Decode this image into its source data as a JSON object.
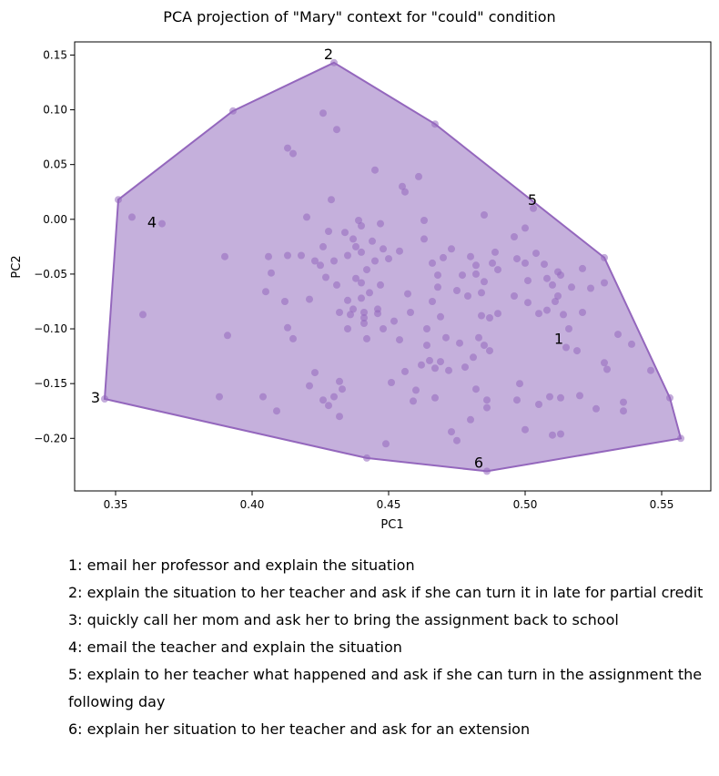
{
  "chart_data": {
    "type": "scatter",
    "title": "PCA projection of \"Mary\" context for \"could\" condition",
    "xlabel": "PC1",
    "ylabel": "PC2",
    "xlim": [
      0.335,
      0.568
    ],
    "ylim": [
      -0.248,
      0.162
    ],
    "xticks": [
      0.35,
      0.4,
      0.45,
      0.5,
      0.55
    ],
    "xtick_labels": [
      "0.35",
      "0.40",
      "0.45",
      "0.50",
      "0.55"
    ],
    "yticks": [
      0.15,
      0.1,
      0.05,
      0.0,
      -0.05,
      -0.1,
      -0.15,
      -0.2
    ],
    "ytick_labels": [
      "0.15",
      "0.10",
      "0.05",
      "0.00",
      "−0.05",
      "−0.10",
      "−0.15",
      "−0.20"
    ],
    "grid": false,
    "colors": {
      "point": "#9467bd",
      "hull_fill": "#c5b0dc",
      "hull_edge": "#9467bd"
    },
    "hull": [
      [
        0.43,
        0.143
      ],
      [
        0.467,
        0.087
      ],
      [
        0.529,
        -0.035
      ],
      [
        0.553,
        -0.163
      ],
      [
        0.557,
        -0.2
      ],
      [
        0.486,
        -0.23
      ],
      [
        0.442,
        -0.218
      ],
      [
        0.346,
        -0.164
      ],
      [
        0.351,
        0.018
      ],
      [
        0.393,
        0.099
      ]
    ],
    "labeled_points": [
      {
        "label": "1",
        "x": 0.515,
        "y": -0.117
      },
      {
        "label": "2",
        "x": 0.43,
        "y": 0.143
      },
      {
        "label": "3",
        "x": 0.346,
        "y": -0.164
      },
      {
        "label": "4",
        "x": 0.367,
        "y": -0.004
      },
      {
        "label": "5",
        "x": 0.503,
        "y": 0.01
      },
      {
        "label": "6",
        "x": 0.486,
        "y": -0.23
      }
    ],
    "points": [
      [
        0.43,
        0.143
      ],
      [
        0.393,
        0.099
      ],
      [
        0.467,
        0.087
      ],
      [
        0.351,
        0.018
      ],
      [
        0.346,
        -0.164
      ],
      [
        0.557,
        -0.2
      ],
      [
        0.553,
        -0.163
      ],
      [
        0.529,
        -0.035
      ],
      [
        0.486,
        -0.23
      ],
      [
        0.442,
        -0.218
      ],
      [
        0.356,
        0.002
      ],
      [
        0.367,
        -0.004
      ],
      [
        0.36,
        -0.087
      ],
      [
        0.39,
        -0.034
      ],
      [
        0.391,
        -0.106
      ],
      [
        0.388,
        -0.162
      ],
      [
        0.404,
        -0.162
      ],
      [
        0.409,
        -0.175
      ],
      [
        0.405,
        -0.066
      ],
      [
        0.406,
        -0.034
      ],
      [
        0.407,
        -0.049
      ],
      [
        0.412,
        -0.075
      ],
      [
        0.413,
        -0.099
      ],
      [
        0.415,
        -0.109
      ],
      [
        0.413,
        -0.033
      ],
      [
        0.418,
        -0.033
      ],
      [
        0.413,
        0.065
      ],
      [
        0.415,
        0.06
      ],
      [
        0.42,
        0.002
      ],
      [
        0.423,
        -0.038
      ],
      [
        0.421,
        -0.073
      ],
      [
        0.421,
        -0.152
      ],
      [
        0.423,
        -0.14
      ],
      [
        0.426,
        -0.165
      ],
      [
        0.428,
        -0.17
      ],
      [
        0.425,
        -0.042
      ],
      [
        0.426,
        -0.025
      ],
      [
        0.427,
        -0.053
      ],
      [
        0.428,
        -0.011
      ],
      [
        0.429,
        0.018
      ],
      [
        0.426,
        0.097
      ],
      [
        0.431,
        0.082
      ],
      [
        0.43,
        -0.038
      ],
      [
        0.431,
        -0.06
      ],
      [
        0.432,
        -0.085
      ],
      [
        0.433,
        -0.155
      ],
      [
        0.432,
        -0.148
      ],
      [
        0.43,
        -0.162
      ],
      [
        0.432,
        -0.18
      ],
      [
        0.434,
        -0.012
      ],
      [
        0.435,
        -0.033
      ],
      [
        0.435,
        -0.074
      ],
      [
        0.435,
        -0.1
      ],
      [
        0.436,
        -0.087
      ],
      [
        0.437,
        -0.082
      ],
      [
        0.437,
        -0.018
      ],
      [
        0.438,
        -0.025
      ],
      [
        0.438,
        -0.054
      ],
      [
        0.439,
        -0.001
      ],
      [
        0.44,
        -0.006
      ],
      [
        0.44,
        -0.03
      ],
      [
        0.44,
        -0.058
      ],
      [
        0.44,
        -0.072
      ],
      [
        0.441,
        -0.085
      ],
      [
        0.441,
        -0.09
      ],
      [
        0.441,
        -0.095
      ],
      [
        0.442,
        -0.109
      ],
      [
        0.442,
        -0.046
      ],
      [
        0.443,
        -0.067
      ],
      [
        0.444,
        -0.02
      ],
      [
        0.445,
        -0.038
      ],
      [
        0.445,
        0.045
      ],
      [
        0.446,
        -0.082
      ],
      [
        0.446,
        -0.086
      ],
      [
        0.447,
        -0.004
      ],
      [
        0.447,
        -0.06
      ],
      [
        0.448,
        -0.1
      ],
      [
        0.448,
        -0.027
      ],
      [
        0.449,
        -0.205
      ],
      [
        0.45,
        -0.036
      ],
      [
        0.451,
        -0.149
      ],
      [
        0.452,
        -0.093
      ],
      [
        0.454,
        -0.029
      ],
      [
        0.454,
        -0.11
      ],
      [
        0.455,
        0.03
      ],
      [
        0.456,
        0.025
      ],
      [
        0.456,
        -0.139
      ],
      [
        0.457,
        -0.068
      ],
      [
        0.458,
        -0.085
      ],
      [
        0.459,
        -0.166
      ],
      [
        0.46,
        -0.156
      ],
      [
        0.461,
        0.039
      ],
      [
        0.462,
        -0.133
      ],
      [
        0.463,
        -0.001
      ],
      [
        0.463,
        -0.018
      ],
      [
        0.464,
        -0.1
      ],
      [
        0.464,
        -0.115
      ],
      [
        0.465,
        -0.129
      ],
      [
        0.466,
        -0.04
      ],
      [
        0.466,
        -0.075
      ],
      [
        0.467,
        -0.136
      ],
      [
        0.467,
        -0.163
      ],
      [
        0.468,
        -0.051
      ],
      [
        0.468,
        -0.062
      ],
      [
        0.469,
        -0.089
      ],
      [
        0.469,
        -0.13
      ],
      [
        0.47,
        -0.035
      ],
      [
        0.471,
        -0.108
      ],
      [
        0.472,
        -0.138
      ],
      [
        0.473,
        -0.194
      ],
      [
        0.473,
        -0.027
      ],
      [
        0.475,
        -0.065
      ],
      [
        0.475,
        -0.202
      ],
      [
        0.476,
        -0.113
      ],
      [
        0.477,
        -0.051
      ],
      [
        0.478,
        -0.135
      ],
      [
        0.479,
        -0.07
      ],
      [
        0.48,
        -0.034
      ],
      [
        0.48,
        -0.183
      ],
      [
        0.481,
        -0.126
      ],
      [
        0.482,
        -0.042
      ],
      [
        0.482,
        -0.05
      ],
      [
        0.482,
        -0.155
      ],
      [
        0.483,
        -0.108
      ],
      [
        0.484,
        -0.067
      ],
      [
        0.484,
        -0.088
      ],
      [
        0.485,
        0.004
      ],
      [
        0.485,
        -0.057
      ],
      [
        0.485,
        -0.115
      ],
      [
        0.486,
        -0.165
      ],
      [
        0.486,
        -0.172
      ],
      [
        0.487,
        -0.12
      ],
      [
        0.487,
        -0.09
      ],
      [
        0.488,
        -0.04
      ],
      [
        0.489,
        -0.03
      ],
      [
        0.49,
        -0.046
      ],
      [
        0.49,
        -0.086
      ],
      [
        0.496,
        -0.016
      ],
      [
        0.496,
        -0.07
      ],
      [
        0.497,
        -0.165
      ],
      [
        0.497,
        -0.036
      ],
      [
        0.498,
        -0.15
      ],
      [
        0.5,
        -0.192
      ],
      [
        0.5,
        -0.04
      ],
      [
        0.5,
        -0.008
      ],
      [
        0.501,
        -0.056
      ],
      [
        0.501,
        -0.076
      ],
      [
        0.503,
        0.01
      ],
      [
        0.504,
        -0.031
      ],
      [
        0.505,
        -0.086
      ],
      [
        0.505,
        -0.169
      ],
      [
        0.507,
        -0.041
      ],
      [
        0.508,
        -0.083
      ],
      [
        0.508,
        -0.054
      ],
      [
        0.509,
        -0.162
      ],
      [
        0.51,
        -0.197
      ],
      [
        0.51,
        -0.06
      ],
      [
        0.511,
        -0.075
      ],
      [
        0.512,
        -0.048
      ],
      [
        0.512,
        -0.07
      ],
      [
        0.513,
        -0.051
      ],
      [
        0.513,
        -0.163
      ],
      [
        0.513,
        -0.196
      ],
      [
        0.514,
        -0.087
      ],
      [
        0.515,
        -0.117
      ],
      [
        0.516,
        -0.1
      ],
      [
        0.517,
        -0.062
      ],
      [
        0.519,
        -0.12
      ],
      [
        0.52,
        -0.161
      ],
      [
        0.521,
        -0.045
      ],
      [
        0.521,
        -0.085
      ],
      [
        0.524,
        -0.063
      ],
      [
        0.526,
        -0.173
      ],
      [
        0.529,
        -0.058
      ],
      [
        0.529,
        -0.131
      ],
      [
        0.53,
        -0.137
      ],
      [
        0.534,
        -0.105
      ],
      [
        0.536,
        -0.167
      ],
      [
        0.536,
        -0.175
      ],
      [
        0.539,
        -0.114
      ],
      [
        0.546,
        -0.138
      ]
    ],
    "legend_items": [
      "1: email her professor and explain the situation",
      "2: explain the situation to her teacher and ask if she can turn it in late for partial credit",
      "3: quickly call her mom and ask her to bring the assignment back to school",
      "4: email the teacher and explain the situation",
      "5: explain to her teacher what happened and ask if she can turn in the assignment the following day",
      "6: explain her situation to her teacher and ask for an extension"
    ]
  }
}
